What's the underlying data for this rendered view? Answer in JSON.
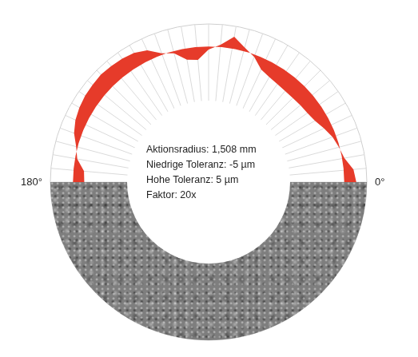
{
  "chart_data": {
    "type": "radar",
    "categories": [
      "180°",
      null,
      null,
      null,
      null,
      null,
      null,
      null,
      null,
      null,
      null,
      null,
      null,
      null,
      null,
      null,
      null,
      null,
      null,
      null,
      null,
      null,
      null,
      null,
      null,
      null,
      null,
      null,
      null,
      null,
      null,
      null,
      null,
      null,
      null,
      null,
      "0°",
      null,
      null,
      null,
      null,
      null,
      null,
      null,
      null,
      null,
      null,
      null,
      null,
      null,
      null,
      null,
      null,
      null,
      null,
      null,
      null,
      null,
      null,
      null,
      null,
      null,
      null,
      null,
      null,
      null,
      null,
      null,
      null,
      null,
      null,
      null
    ],
    "values": [
      -15,
      -14,
      -3,
      2,
      10,
      15,
      18,
      20,
      21,
      22,
      21,
      20,
      18,
      13,
      2,
      -3,
      -15,
      -17,
      -4,
      3,
      16,
      5,
      -3,
      -15,
      -19,
      -21,
      -22,
      -22,
      -21,
      -20,
      -17,
      -11,
      -5,
      -1,
      3,
      13,
      16,
      null,
      null,
      null,
      null,
      null,
      null,
      null,
      null,
      null,
      null,
      null,
      null,
      null,
      null,
      null,
      null,
      null,
      null,
      null,
      null,
      null,
      null,
      null,
      null,
      null,
      null,
      null,
      null,
      null,
      null,
      null,
      null,
      null,
      null,
      null
    ],
    "colors": [
      "#e63b2a",
      "#e63b2a",
      "#2e9b45",
      "#2e9b45",
      "#e63b2a",
      "#e63b2a",
      "#e63b2a",
      "#e63b2a",
      "#e63b2a",
      "#e63b2a",
      "#e63b2a",
      "#e63b2a",
      "#e63b2a",
      "#e63b2a",
      "#2e9b45",
      "#2e9b45",
      "#e63b2a",
      "#e63b2a",
      "#2e9b45",
      "#2e9b45",
      "#e63b2a",
      "#2e9b45",
      "#2e9b45",
      "#e63b2a",
      "#e63b2a",
      "#e63b2a",
      "#e63b2a",
      "#e63b2a",
      "#e63b2a",
      "#e63b2a",
      "#e63b2a",
      "#e63b2a",
      "#2e9b45",
      "#2e9b45",
      "#2e9b45",
      "#e63b2a",
      "#e63b2a",
      null,
      null,
      null,
      null,
      null,
      null,
      null,
      null,
      null,
      null,
      null,
      null,
      null,
      null,
      null,
      null,
      null,
      null,
      null,
      null,
      null,
      null,
      null,
      null,
      null,
      null,
      null,
      null,
      null,
      null,
      null,
      null,
      null,
      null,
      null
    ],
    "ylim": [
      -180,
      30
    ],
    "yticks": [
      -180,
      30
    ],
    "tick_labels": false,
    "grid": true,
    "annotations": [
      "Aktionsradius: 1,508 mm",
      "Niedrige Toleranz: -5 µm",
      "Hohe Toleranz: 5 µm",
      "Faktor: 20x"
    ]
  }
}
